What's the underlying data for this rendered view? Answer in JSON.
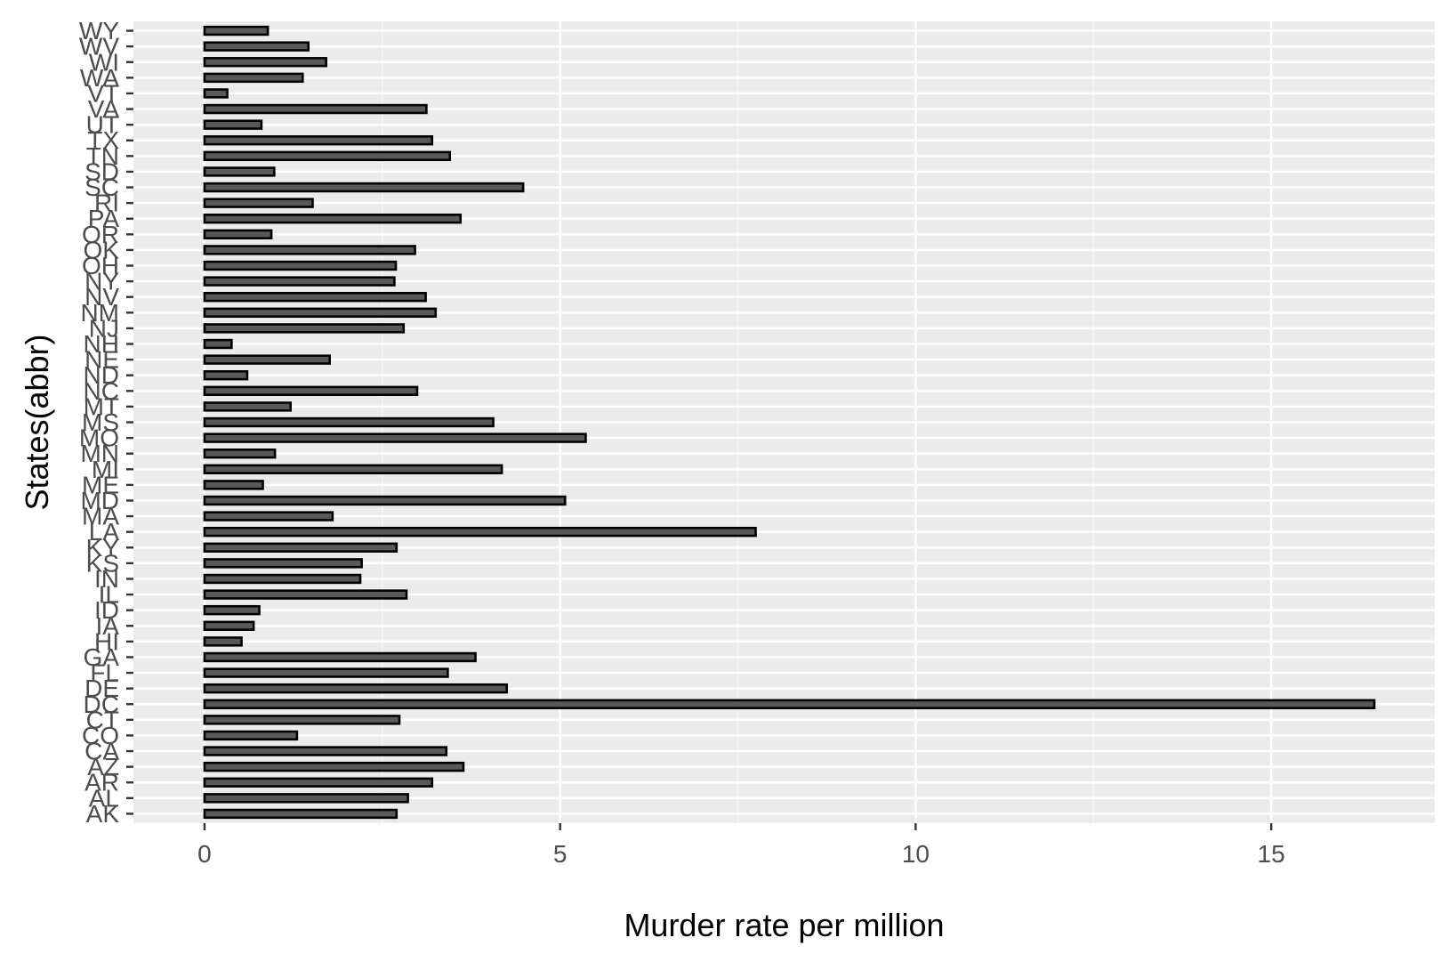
{
  "chart_data": {
    "type": "bar",
    "orientation": "horizontal",
    "title": "",
    "xlabel": "Murder rate per million",
    "ylabel": "States(abbr)",
    "xlim": [
      -1.0,
      17.3
    ],
    "xticks": [
      0,
      5,
      10,
      15
    ],
    "grid": true,
    "colors": {
      "panel_background": "#ebebeb",
      "grid_major": "#ffffff",
      "grid_minor": "#f5f5f5",
      "bar_fill": "#595959",
      "bar_outline": "#000000",
      "tick_text": "#4d4d4d",
      "axis_title_text": "#000000"
    },
    "categories": [
      "AK",
      "AL",
      "AR",
      "AZ",
      "CA",
      "CO",
      "CT",
      "DC",
      "DE",
      "FL",
      "GA",
      "HI",
      "IA",
      "ID",
      "IL",
      "IN",
      "KS",
      "KY",
      "LA",
      "MA",
      "MD",
      "ME",
      "MI",
      "MN",
      "MO",
      "MS",
      "MT",
      "NC",
      "ND",
      "NE",
      "NH",
      "NJ",
      "NM",
      "NV",
      "NY",
      "OH",
      "OK",
      "OR",
      "PA",
      "RI",
      "SC",
      "SD",
      "TN",
      "TX",
      "UT",
      "VA",
      "VT",
      "WA",
      "WI",
      "WV",
      "WY"
    ],
    "values": [
      2.7,
      2.86,
      3.2,
      3.64,
      3.4,
      1.3,
      2.74,
      16.45,
      4.25,
      3.42,
      3.81,
      0.52,
      0.69,
      0.77,
      2.84,
      2.19,
      2.21,
      2.7,
      7.75,
      1.8,
      5.07,
      0.82,
      4.18,
      0.99,
      5.36,
      4.06,
      1.21,
      2.99,
      0.6,
      1.76,
      0.38,
      2.8,
      3.25,
      3.11,
      2.67,
      2.69,
      2.96,
      0.94,
      3.6,
      1.52,
      4.48,
      0.98,
      3.45,
      3.2,
      0.8,
      3.12,
      0.32,
      1.38,
      1.71,
      1.46,
      0.89
    ]
  }
}
